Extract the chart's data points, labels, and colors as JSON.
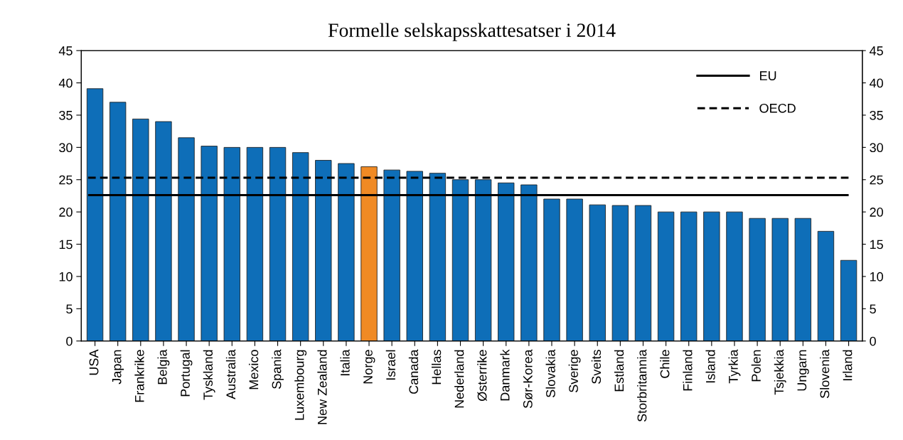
{
  "chart_data": {
    "type": "bar",
    "title": "Formelle selskapsskattesatser i 2014",
    "categories": [
      "USA",
      "Japan",
      "Frankrike",
      "Belgia",
      "Portugal",
      "Tyskland",
      "Australia",
      "Mexico",
      "Spania",
      "Luxembourg",
      "New Zealand",
      "Italia",
      "Norge",
      "Israel",
      "Canada",
      "Hellas",
      "Nederland",
      "Østerrike",
      "Danmark",
      "Sør-Korea",
      "Slovakia",
      "Sverige",
      "Sveits",
      "Estland",
      "Storbritannia",
      "Chile",
      "Finland",
      "Island",
      "Tyrkia",
      "Polen",
      "Tsjekkia",
      "Ungarn",
      "Slovenia",
      "Irland"
    ],
    "values": [
      39.1,
      37.0,
      34.4,
      34.0,
      31.5,
      30.2,
      30,
      30,
      30,
      29.2,
      28,
      27.5,
      27,
      26.5,
      26.3,
      26,
      25,
      25,
      24.5,
      24.2,
      22,
      22,
      21.1,
      21,
      21,
      20,
      20,
      20,
      20,
      19,
      19,
      19,
      17,
      12.5
    ],
    "colors": [
      "#0e6eb8",
      "#0e6eb8",
      "#0e6eb8",
      "#0e6eb8",
      "#0e6eb8",
      "#0e6eb8",
      "#0e6eb8",
      "#0e6eb8",
      "#0e6eb8",
      "#0e6eb8",
      "#0e6eb8",
      "#0e6eb8",
      "#f08a24",
      "#0e6eb8",
      "#0e6eb8",
      "#0e6eb8",
      "#0e6eb8",
      "#0e6eb8",
      "#0e6eb8",
      "#0e6eb8",
      "#0e6eb8",
      "#0e6eb8",
      "#0e6eb8",
      "#0e6eb8",
      "#0e6eb8",
      "#0e6eb8",
      "#0e6eb8",
      "#0e6eb8",
      "#0e6eb8",
      "#0e6eb8",
      "#0e6eb8",
      "#0e6eb8",
      "#0e6eb8",
      "#0e6eb8"
    ],
    "ylim": [
      0,
      45
    ],
    "yticks": [
      0,
      5,
      10,
      15,
      20,
      25,
      30,
      35,
      40,
      45
    ],
    "y2lim": [
      0,
      45
    ],
    "y2ticks": [
      0,
      5,
      10,
      15,
      20,
      25,
      30,
      35,
      40,
      45
    ],
    "ref_lines": [
      {
        "axis": "y",
        "value": 22.6,
        "label": "EU",
        "color": "#000000",
        "line_style": "solid"
      },
      {
        "axis": "y",
        "value": 25.3,
        "label": "OECD",
        "color": "#000000",
        "line_style": "dashed"
      }
    ],
    "legend": "top right",
    "grid": false
  }
}
